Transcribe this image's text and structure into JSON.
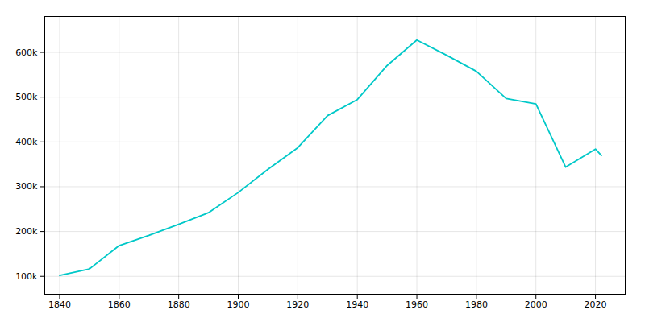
{
  "chart_data": {
    "type": "line",
    "x": [
      1840,
      1850,
      1860,
      1870,
      1880,
      1890,
      1900,
      1910,
      1920,
      1930,
      1940,
      1950,
      1960,
      1970,
      1980,
      1990,
      2000,
      2010,
      2020,
      2022
    ],
    "values": [
      102193,
      116375,
      168675,
      191418,
      216090,
      242039,
      287104,
      339075,
      387219,
      458762,
      494537,
      570445,
      627525,
      593471,
      557515,
      496938,
      484674,
      343829,
      383997,
      369749
    ],
    "color": "#00c8c8",
    "xlim": [
      1835,
      2030
    ],
    "ylim": [
      60000,
      680000
    ],
    "xticks": [
      1840,
      1860,
      1880,
      1900,
      1920,
      1940,
      1960,
      1980,
      2000,
      2020
    ],
    "yticks": [
      {
        "value": 100000,
        "label": "100k"
      },
      {
        "value": 200000,
        "label": "200k"
      },
      {
        "value": 300000,
        "label": "300k"
      },
      {
        "value": 400000,
        "label": "400k"
      },
      {
        "value": 500000,
        "label": "500k"
      },
      {
        "value": 600000,
        "label": "600k"
      }
    ],
    "grid": true
  }
}
